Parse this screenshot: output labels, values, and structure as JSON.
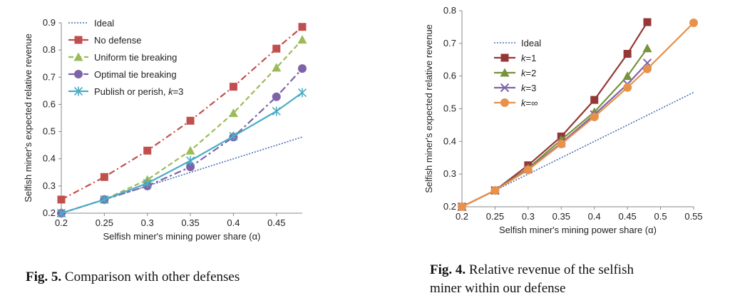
{
  "chart_data": [
    {
      "type": "line",
      "xlabel": "Selfish miner's mining power share (α)",
      "ylabel": "Selfish miner's expected relative revenue",
      "xlim": [
        0.2,
        0.48
      ],
      "ylim": [
        0.2,
        0.9
      ],
      "xticks": [
        "0.2",
        "0.25",
        "0.3",
        "0.35",
        "0.4",
        "0.45"
      ],
      "yticks": [
        "0.2",
        "0.3",
        "0.4",
        "0.5",
        "0.6",
        "0.7",
        "0.8",
        "0.9"
      ],
      "legend_position": "top-left",
      "series": [
        {
          "name": "Ideal",
          "color": "#4a6fb5",
          "style": "dotted",
          "marker": "none",
          "x": [
            0.2,
            0.48
          ],
          "y": [
            0.2,
            0.48
          ]
        },
        {
          "name": "No defense",
          "color": "#c0504d",
          "style": "dashdot",
          "marker": "square",
          "x": [
            0.2,
            0.25,
            0.3,
            0.35,
            0.4,
            0.45,
            0.48
          ],
          "y": [
            0.25,
            0.333,
            0.43,
            0.54,
            0.665,
            0.805,
            0.885
          ]
        },
        {
          "name": "Uniform tie breaking",
          "color": "#9bbb59",
          "style": "dashed",
          "marker": "triangle",
          "x": [
            0.2,
            0.25,
            0.3,
            0.35,
            0.4,
            0.45,
            0.48
          ],
          "y": [
            0.2,
            0.25,
            0.323,
            0.43,
            0.568,
            0.735,
            0.838
          ]
        },
        {
          "name": "Optimal tie breaking",
          "color": "#7f63a8",
          "style": "dashdot2",
          "marker": "circle",
          "x": [
            0.2,
            0.25,
            0.3,
            0.35,
            0.4,
            0.45,
            0.48
          ],
          "y": [
            0.2,
            0.25,
            0.3,
            0.37,
            0.48,
            0.628,
            0.732
          ]
        },
        {
          "name": "Publish or perish, ",
          "name_italic": "k",
          "name_suffix": "=3",
          "color": "#4bacc6",
          "style": "solid",
          "marker": "star",
          "x": [
            0.2,
            0.25,
            0.3,
            0.35,
            0.4,
            0.45,
            0.48
          ],
          "y": [
            0.2,
            0.25,
            0.31,
            0.393,
            0.483,
            0.575,
            0.643
          ]
        }
      ]
    },
    {
      "type": "line",
      "xlabel": "Selfish miner's mining power share (α)",
      "ylabel": "Selfish miner's expected relative revenue",
      "xlim": [
        0.2,
        0.55
      ],
      "ylim": [
        0.2,
        0.8
      ],
      "xticks": [
        "0.2",
        "0.25",
        "0.3",
        "0.35",
        "0.4",
        "0.45",
        "0.5",
        "0.55"
      ],
      "yticks": [
        "0.2",
        "0.3",
        "0.4",
        "0.5",
        "0.6",
        "0.7",
        "0.8"
      ],
      "legend_position": "top-left",
      "series": [
        {
          "name": "Ideal",
          "color": "#4a6fb5",
          "style": "dotted",
          "marker": "none",
          "x": [
            0.2,
            0.55
          ],
          "y": [
            0.2,
            0.55
          ]
        },
        {
          "name": "",
          "name_italic": "k",
          "name_suffix": "=1",
          "color": "#953735",
          "style": "solid",
          "marker": "square",
          "x": [
            0.2,
            0.25,
            0.3,
            0.35,
            0.4,
            0.45,
            0.48
          ],
          "y": [
            0.2,
            0.25,
            0.327,
            0.415,
            0.527,
            0.668,
            0.765
          ]
        },
        {
          "name": "",
          "name_italic": "k",
          "name_suffix": "=2",
          "color": "#77933c",
          "style": "solid",
          "marker": "triangle",
          "x": [
            0.2,
            0.25,
            0.3,
            0.35,
            0.4,
            0.45,
            0.48
          ],
          "y": [
            0.2,
            0.25,
            0.318,
            0.405,
            0.49,
            0.6,
            0.685
          ]
        },
        {
          "name": "",
          "name_italic": "k",
          "name_suffix": "=3",
          "color": "#7f63a8",
          "style": "solid",
          "marker": "x",
          "x": [
            0.2,
            0.25,
            0.3,
            0.35,
            0.4,
            0.45,
            0.48
          ],
          "y": [
            0.2,
            0.25,
            0.315,
            0.395,
            0.482,
            0.575,
            0.64
          ]
        },
        {
          "name": "",
          "name_italic": "k",
          "name_suffix": "=∞",
          "color": "#e8914b",
          "style": "solid",
          "marker": "circle",
          "x": [
            0.2,
            0.25,
            0.3,
            0.35,
            0.4,
            0.45,
            0.48,
            0.55
          ],
          "y": [
            0.2,
            0.25,
            0.313,
            0.392,
            0.475,
            0.565,
            0.622,
            0.763
          ]
        }
      ]
    }
  ],
  "captions": {
    "fig5_label": "Fig. 5.",
    "fig5_text": " Comparison with other defenses",
    "fig4_label": "Fig. 4.",
    "fig4_text_line1": " Relative revenue of the selfish",
    "fig4_text_line2": "miner within our defense"
  }
}
